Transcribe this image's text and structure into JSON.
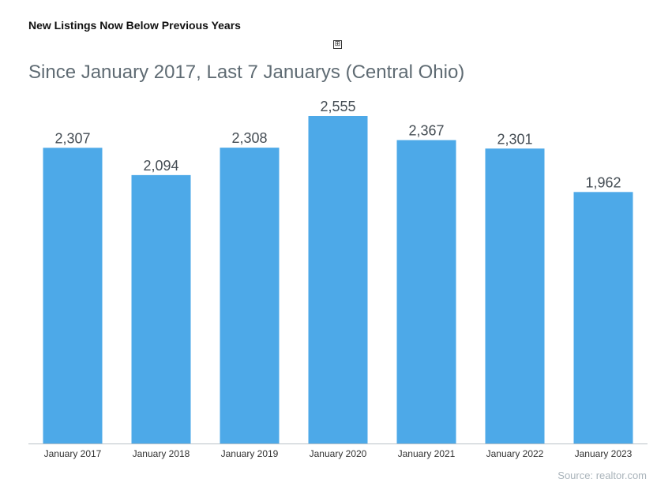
{
  "heading": "New Listings Now Below Previous Years",
  "move_handle_icon": "move-handle-icon",
  "subtitle": "Since January 2017, Last 7 Januarys (Central Ohio)",
  "source": "Source: realtor.com",
  "colors": {
    "bar": "#4da9e8",
    "axis": "#b9c1c7",
    "value_label": "#454d54",
    "tick_label": "#333333"
  },
  "chart_data": {
    "type": "bar",
    "title": "Since January 2017, Last 7 Januarys (Central Ohio)",
    "xlabel": "",
    "ylabel": "",
    "categories": [
      "January 2017",
      "January 2018",
      "January 2019",
      "January 2020",
      "January 2021",
      "January 2022",
      "January 2023"
    ],
    "values": [
      2307,
      2094,
      2308,
      2555,
      2367,
      2301,
      1962
    ],
    "value_labels": [
      "2,307",
      "2,094",
      "2,308",
      "2,555",
      "2,367",
      "2,301",
      "1,962"
    ],
    "ylim": [
      0,
      2555
    ],
    "grid": false,
    "legend": "none"
  }
}
